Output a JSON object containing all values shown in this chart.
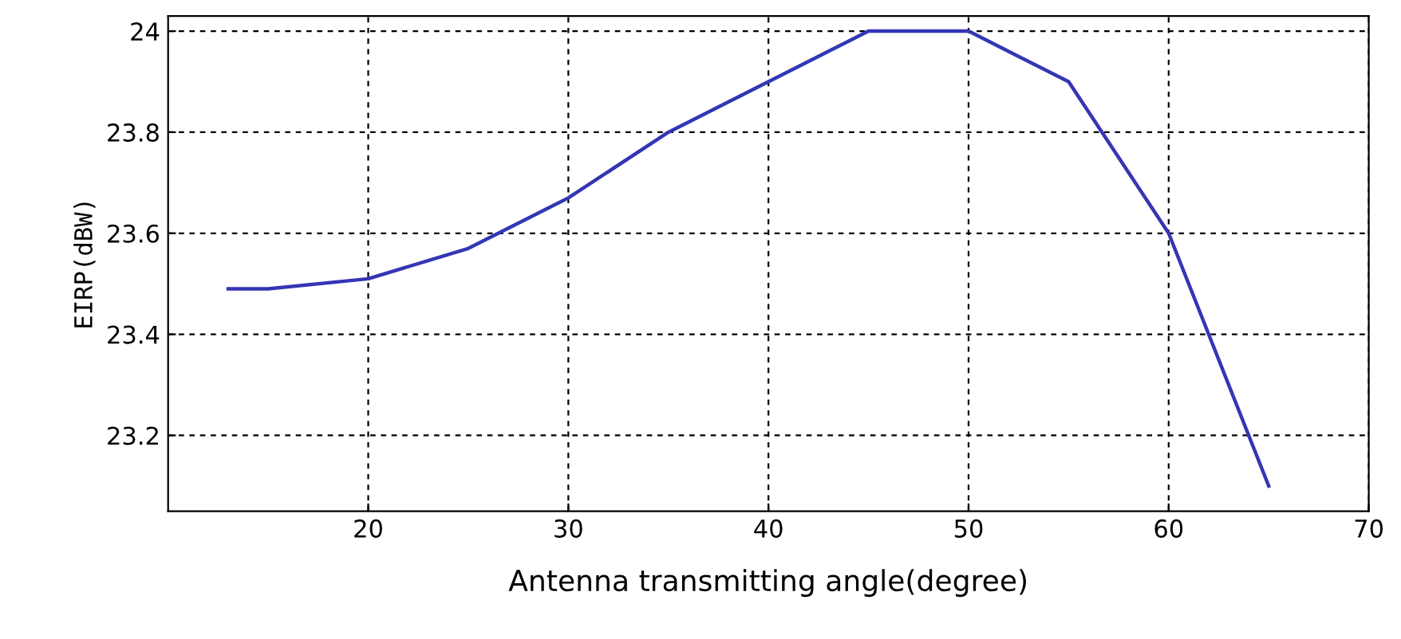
{
  "chart_data": {
    "type": "line",
    "xlabel": "Antenna transmitting angle(degree)",
    "ylabel": "EIRP(dBW)",
    "x": [
      13,
      15,
      20,
      25,
      30,
      35,
      40,
      45,
      50,
      55,
      60,
      65
    ],
    "series": [
      {
        "color": "#3535b5",
        "values": [
          23.49,
          23.49,
          23.51,
          23.57,
          23.67,
          23.8,
          23.9,
          24.0,
          24.0,
          23.9,
          23.6,
          23.1
        ]
      }
    ],
    "xlim": [
      10,
      70
    ],
    "ylim": [
      23.05,
      24.03
    ],
    "xticks": [
      20,
      30,
      40,
      50,
      60,
      70
    ],
    "yticks": [
      23.2,
      23.4,
      23.6,
      23.8,
      24
    ],
    "grid": true,
    "line_style": "solid",
    "marker": "none"
  }
}
